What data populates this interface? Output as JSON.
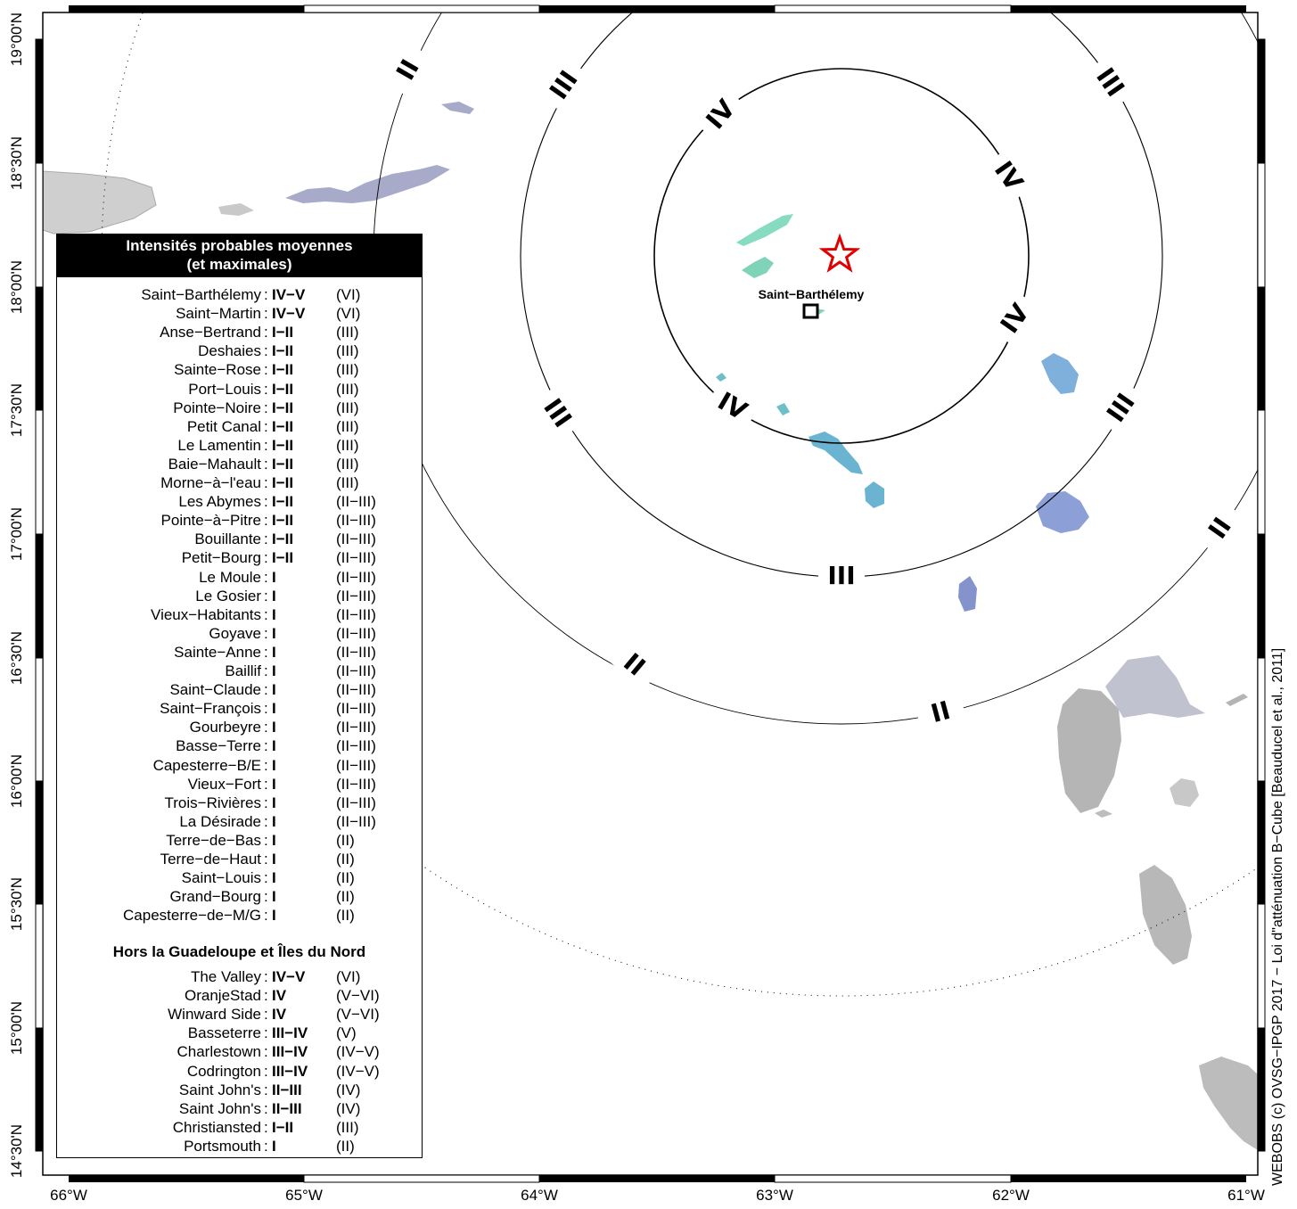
{
  "axes": {
    "longitude_ticks": [
      "66°W",
      "65°W",
      "64°W",
      "63°W",
      "62°W",
      "61°W"
    ],
    "latitude_ticks": [
      "19°00'N",
      "18°30'N",
      "18°00'N",
      "17°30'N",
      "17°00'N",
      "16°30'N",
      "16°00'N",
      "15°30'N",
      "15°00'N",
      "14°30'N"
    ]
  },
  "epicenter": {
    "symbol": "star-icon",
    "color": "#e00000"
  },
  "place": {
    "name": "Saint−Barthélemy"
  },
  "rings": [
    {
      "labels": [
        "IV",
        "IV",
        "IV",
        "IV"
      ]
    },
    {
      "labels": [
        "III",
        "III",
        "III",
        "III",
        "III"
      ]
    },
    {
      "labels": [
        "II",
        "II",
        "II",
        "II"
      ]
    }
  ],
  "legend": {
    "title_line1": "Intensités probables moyennes",
    "title_line2": "(et maximales)",
    "guadeloupe": [
      {
        "name": "Saint−Barthélemy",
        "mean": "IV−V",
        "max": "(VI)"
      },
      {
        "name": "Saint−Martin",
        "mean": "IV−V",
        "max": "(VI)"
      },
      {
        "name": "Anse−Bertrand",
        "mean": "I−II",
        "max": "(III)"
      },
      {
        "name": "Deshaies",
        "mean": "I−II",
        "max": "(III)"
      },
      {
        "name": "Sainte−Rose",
        "mean": "I−II",
        "max": "(III)"
      },
      {
        "name": "Port−Louis",
        "mean": "I−II",
        "max": "(III)"
      },
      {
        "name": "Pointe−Noire",
        "mean": "I−II",
        "max": "(III)"
      },
      {
        "name": "Petit Canal",
        "mean": "I−II",
        "max": "(III)"
      },
      {
        "name": "Le Lamentin",
        "mean": "I−II",
        "max": "(III)"
      },
      {
        "name": "Baie−Mahault",
        "mean": "I−II",
        "max": "(III)"
      },
      {
        "name": "Morne−à−l'eau",
        "mean": "I−II",
        "max": "(III)"
      },
      {
        "name": "Les Abymes",
        "mean": "I−II",
        "max": "(II−III)"
      },
      {
        "name": "Pointe−à−Pitre",
        "mean": "I−II",
        "max": "(II−III)"
      },
      {
        "name": "Bouillante",
        "mean": "I−II",
        "max": "(II−III)"
      },
      {
        "name": "Petit−Bourg",
        "mean": "I−II",
        "max": "(II−III)"
      },
      {
        "name": "Le Moule",
        "mean": "I",
        "max": "(II−III)"
      },
      {
        "name": "Le Gosier",
        "mean": "I",
        "max": "(II−III)"
      },
      {
        "name": "Vieux−Habitants",
        "mean": "I",
        "max": "(II−III)"
      },
      {
        "name": "Goyave",
        "mean": "I",
        "max": "(II−III)"
      },
      {
        "name": "Sainte−Anne",
        "mean": "I",
        "max": "(II−III)"
      },
      {
        "name": "Baillif",
        "mean": "I",
        "max": "(II−III)"
      },
      {
        "name": "Saint−Claude",
        "mean": "I",
        "max": "(II−III)"
      },
      {
        "name": "Saint−François",
        "mean": "I",
        "max": "(II−III)"
      },
      {
        "name": "Gourbeyre",
        "mean": "I",
        "max": "(II−III)"
      },
      {
        "name": "Basse−Terre",
        "mean": "I",
        "max": "(II−III)"
      },
      {
        "name": "Capesterre−B/E",
        "mean": "I",
        "max": "(II−III)"
      },
      {
        "name": "Vieux−Fort",
        "mean": "I",
        "max": "(II−III)"
      },
      {
        "name": "Trois−Rivières",
        "mean": "I",
        "max": "(II−III)"
      },
      {
        "name": "La Désirade",
        "mean": "I",
        "max": "(II−III)"
      },
      {
        "name": "Terre−de−Bas",
        "mean": "I",
        "max": "(II)"
      },
      {
        "name": "Terre−de−Haut",
        "mean": "I",
        "max": "(II)"
      },
      {
        "name": "Saint−Louis",
        "mean": "I",
        "max": "(II)"
      },
      {
        "name": "Grand−Bourg",
        "mean": "I",
        "max": "(II)"
      },
      {
        "name": "Capesterre−de−M/G",
        "mean": "I",
        "max": "(II)"
      }
    ],
    "outside_title": "Hors la Guadeloupe et Îles du Nord",
    "outside": [
      {
        "name": "The Valley",
        "mean": "IV−V",
        "max": "(VI)"
      },
      {
        "name": "OranjeStad",
        "mean": "IV",
        "max": "(V−VI)"
      },
      {
        "name": "Winward Side",
        "mean": "IV",
        "max": "(V−VI)"
      },
      {
        "name": "Basseterre",
        "mean": "III−IV",
        "max": "(V)"
      },
      {
        "name": "Charlestown",
        "mean": "III−IV",
        "max": "(IV−V)"
      },
      {
        "name": "Codrington",
        "mean": "III−IV",
        "max": "(IV−V)"
      },
      {
        "name": "Saint John's",
        "mean": "II−III",
        "max": "(IV)"
      },
      {
        "name": "Saint John's",
        "mean": "II−III",
        "max": "(IV)"
      },
      {
        "name": "Christiansted",
        "mean": "I−II",
        "max": "(III)"
      },
      {
        "name": "Portsmouth",
        "mean": "I",
        "max": "(II)"
      }
    ]
  },
  "credit": "WEBOBS (c) OVSG−IPGP 2017 − Loi d\"atténuation B−Cube [Beauducel et al., 2011]"
}
